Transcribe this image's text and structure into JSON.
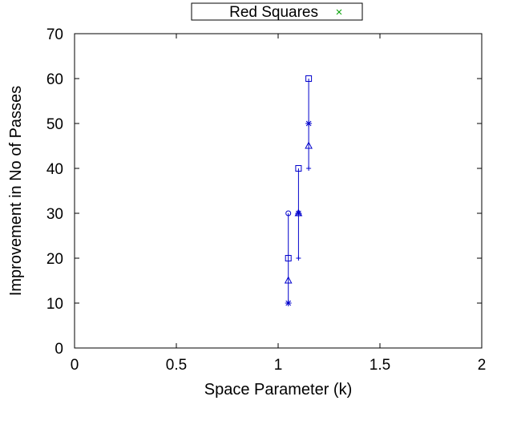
{
  "chart_data": {
    "type": "scatter",
    "title": "",
    "xlabel": "Space Parameter (k)",
    "ylabel": "Improvement in No of Passes",
    "xlim": [
      0,
      2
    ],
    "ylim": [
      0,
      70
    ],
    "x_ticks": [
      "0",
      "0.5",
      "1",
      "1.5",
      "2"
    ],
    "y_ticks": [
      "0",
      "10",
      "20",
      "30",
      "40",
      "50",
      "60",
      "70"
    ],
    "grid": false,
    "legend_position": "top-center",
    "legend": [
      {
        "label": "Red Squares",
        "marker": "x",
        "color": "#00a000"
      }
    ],
    "series_color": "#0000cc",
    "error_ranges": [
      {
        "x": 1.05,
        "min": 10,
        "max": 30
      },
      {
        "x": 1.1,
        "min": 20,
        "max": 40
      },
      {
        "x": 1.15,
        "min": 40,
        "max": 60
      }
    ],
    "points": [
      {
        "x": 1.05,
        "y": 30,
        "marker": "circle"
      },
      {
        "x": 1.05,
        "y": 20,
        "marker": "square"
      },
      {
        "x": 1.05,
        "y": 15,
        "marker": "triangle"
      },
      {
        "x": 1.05,
        "y": 10,
        "marker": "star"
      },
      {
        "x": 1.1,
        "y": 40,
        "marker": "square"
      },
      {
        "x": 1.1,
        "y": 30,
        "marker": "star"
      },
      {
        "x": 1.1,
        "y": 30,
        "marker": "triangle"
      },
      {
        "x": 1.1,
        "y": 20,
        "marker": "plus"
      },
      {
        "x": 1.15,
        "y": 60,
        "marker": "square"
      },
      {
        "x": 1.15,
        "y": 50,
        "marker": "star"
      },
      {
        "x": 1.15,
        "y": 45,
        "marker": "triangle"
      },
      {
        "x": 1.15,
        "y": 40,
        "marker": "plus"
      }
    ]
  }
}
